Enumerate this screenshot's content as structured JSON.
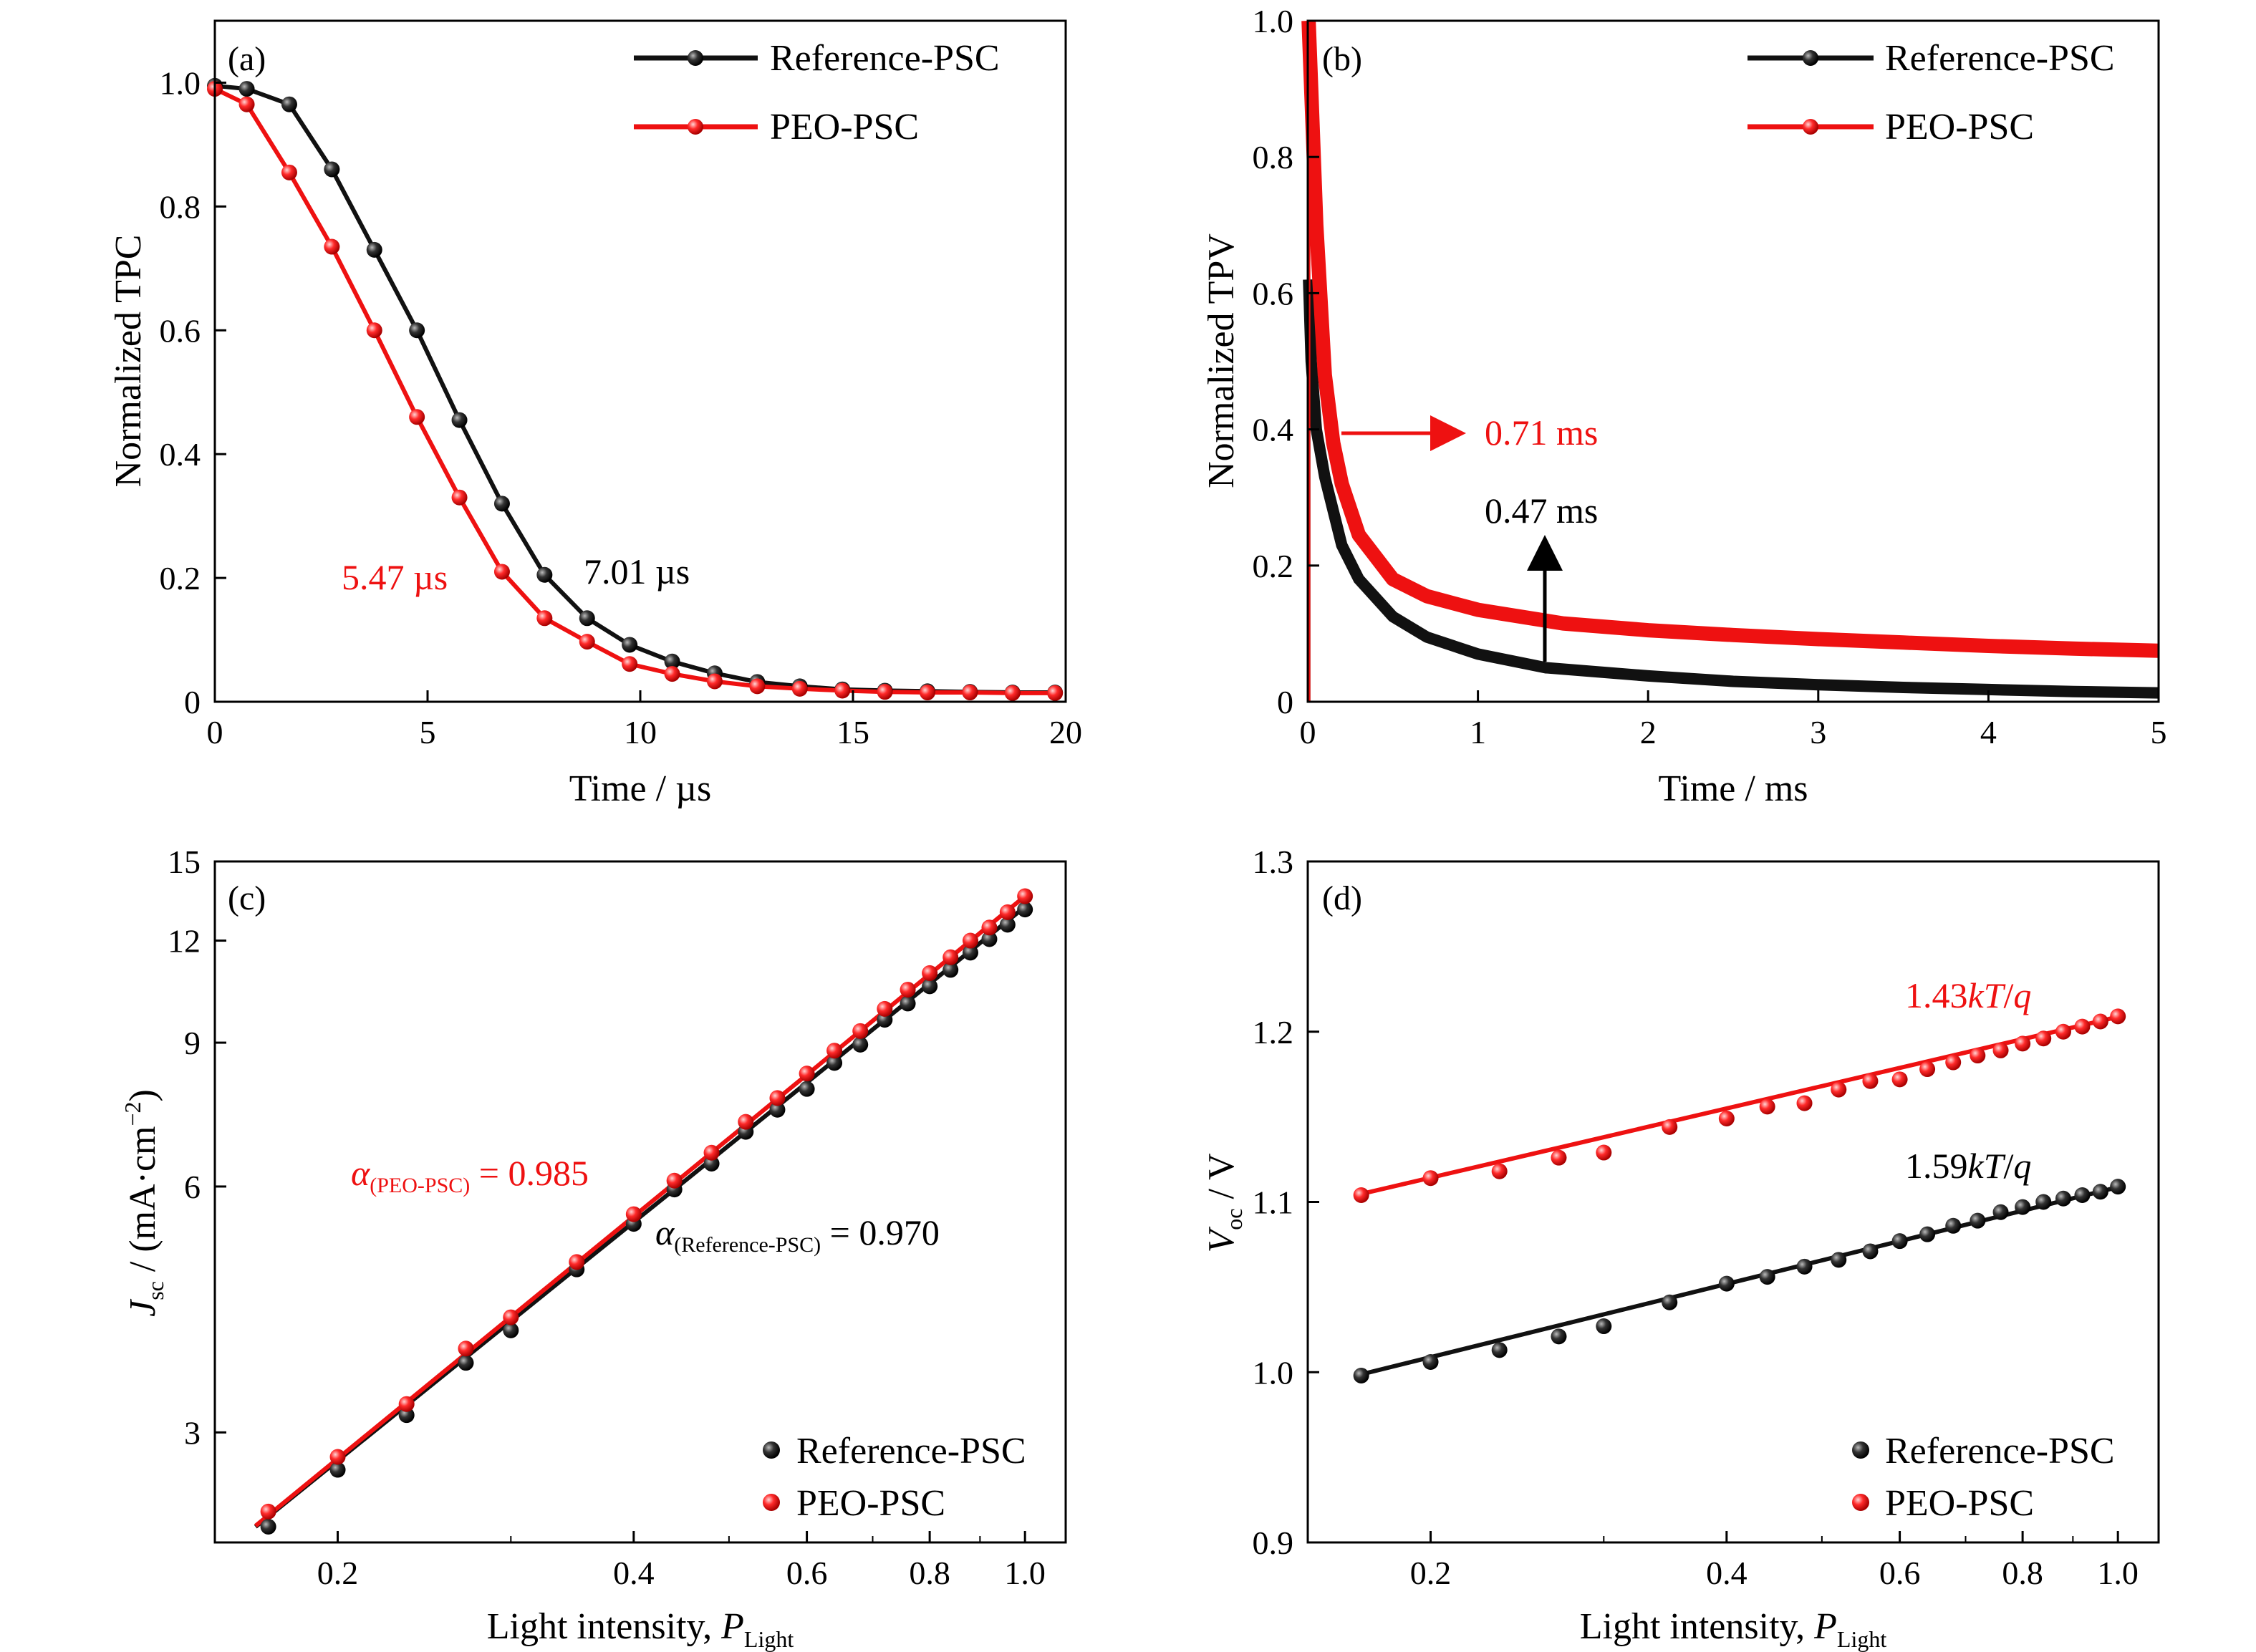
{
  "colors": {
    "reference": "#111111",
    "peo": "#ee1111",
    "axis": "#000000"
  },
  "chart_data": [
    {
      "panel": "(a)",
      "type": "line",
      "xlabel": "Time / µs",
      "ylabel": "Normalized TPC",
      "xlim": [
        0,
        20
      ],
      "ylim": [
        0,
        1.1
      ],
      "xticks": [
        "0",
        "5",
        "10",
        "15",
        "20"
      ],
      "yticks": [
        "0",
        "0.2",
        "0.4",
        "0.6",
        "0.8",
        "1.0"
      ],
      "legend": [
        "Reference-PSC",
        "PEO-PSC"
      ],
      "legend_position": "top-right",
      "series": [
        {
          "name": "Reference-PSC",
          "color_key": "reference",
          "x": [
            0,
            0.75,
            1.75,
            2.75,
            3.75,
            4.75,
            5.75,
            6.75,
            7.75,
            8.75,
            9.75,
            10.75,
            11.75,
            12.75,
            13.75,
            14.75,
            15.75,
            16.75,
            17.75,
            18.75,
            19.75
          ],
          "y": [
            0.995,
            0.99,
            0.965,
            0.86,
            0.73,
            0.6,
            0.455,
            0.32,
            0.205,
            0.135,
            0.092,
            0.065,
            0.046,
            0.032,
            0.025,
            0.02,
            0.018,
            0.017,
            0.016,
            0.015,
            0.015
          ]
        },
        {
          "name": "PEO-PSC",
          "color_key": "peo",
          "x": [
            0,
            0.75,
            1.75,
            2.75,
            3.75,
            4.75,
            5.75,
            6.75,
            7.75,
            8.75,
            9.75,
            10.75,
            11.75,
            12.75,
            13.75,
            14.75,
            15.75,
            16.75,
            17.75,
            18.75,
            19.75
          ],
          "y": [
            0.99,
            0.965,
            0.855,
            0.735,
            0.6,
            0.46,
            0.33,
            0.21,
            0.135,
            0.097,
            0.061,
            0.045,
            0.033,
            0.025,
            0.021,
            0.018,
            0.016,
            0.015,
            0.015,
            0.014,
            0.014
          ]
        }
      ],
      "annotations": [
        {
          "text": "5.47 µs",
          "color_key": "peo"
        },
        {
          "text": "7.01 µs",
          "color_key": "reference"
        }
      ]
    },
    {
      "panel": "(b)",
      "type": "line",
      "xlabel": "Time / ms",
      "ylabel": "Normalized TPV",
      "xlim": [
        0,
        5
      ],
      "ylim": [
        0,
        1.0
      ],
      "xticks": [
        "0",
        "1",
        "2",
        "3",
        "4",
        "5"
      ],
      "yticks": [
        "0",
        "0.2",
        "0.4",
        "0.6",
        "0.8",
        "1.0"
      ],
      "legend": [
        "Reference-PSC",
        "PEO-PSC"
      ],
      "legend_position": "top-right",
      "series": [
        {
          "name": "Reference-PSC",
          "color_key": "reference",
          "x": [
            0.005,
            0.02,
            0.05,
            0.1,
            0.2,
            0.3,
            0.5,
            0.7,
            1.0,
            1.4,
            2.0,
            2.5,
            3.0,
            3.5,
            4.0,
            4.5,
            5.0
          ],
          "y": [
            0.62,
            0.5,
            0.4,
            0.33,
            0.23,
            0.18,
            0.125,
            0.095,
            0.07,
            0.05,
            0.038,
            0.03,
            0.025,
            0.021,
            0.018,
            0.015,
            0.013
          ]
        },
        {
          "name": "PEO-PSC",
          "color_key": "peo",
          "x": [
            0.005,
            0.02,
            0.05,
            0.1,
            0.15,
            0.2,
            0.3,
            0.5,
            0.7,
            1.0,
            1.5,
            2.0,
            2.5,
            3.0,
            3.5,
            4.0,
            4.5,
            5.0
          ],
          "y": [
            1.0,
            0.9,
            0.7,
            0.48,
            0.38,
            0.32,
            0.245,
            0.18,
            0.155,
            0.135,
            0.115,
            0.105,
            0.098,
            0.092,
            0.087,
            0.082,
            0.078,
            0.075
          ]
        }
      ],
      "annotations": [
        {
          "text": "0.71 ms",
          "color_key": "peo"
        },
        {
          "text": "0.47 ms",
          "color_key": "reference"
        }
      ]
    },
    {
      "panel": "(c)",
      "type": "scatter",
      "xscale": "log",
      "yscale": "log",
      "xlabel": "Light intensity, P_Light",
      "ylabel": "J_sc / (mA·cm⁻²)",
      "xlim": [
        0.15,
        1.1
      ],
      "ylim": [
        2.2,
        15
      ],
      "xticks": [
        "0.2",
        "0.4",
        "0.6",
        "0.8",
        "1.0"
      ],
      "yticks": [
        "3",
        "6",
        "9",
        "12",
        "15"
      ],
      "legend": [
        "Reference-PSC",
        "PEO-PSC"
      ],
      "legend_position": "bottom-right",
      "series": [
        {
          "name": "Reference-PSC",
          "color_key": "reference",
          "slope": 0.97,
          "intercept_at_1": 13.2,
          "x": [
            0.17,
            0.2,
            0.235,
            0.27,
            0.3,
            0.35,
            0.4,
            0.44,
            0.48,
            0.52,
            0.56,
            0.6,
            0.64,
            0.68,
            0.72,
            0.76,
            0.8,
            0.84,
            0.88,
            0.92,
            0.96,
            1.0
          ],
          "y": [
            2.3,
            2.7,
            3.15,
            3.65,
            4.0,
            4.75,
            5.4,
            5.95,
            6.4,
            7.0,
            7.45,
            7.9,
            8.5,
            8.95,
            9.6,
            10.05,
            10.55,
            11.05,
            11.6,
            12.05,
            12.55,
            13.1
          ]
        },
        {
          "name": "PEO-PSC",
          "color_key": "peo",
          "slope": 0.985,
          "intercept_at_1": 13.6,
          "x": [
            0.17,
            0.2,
            0.235,
            0.27,
            0.3,
            0.35,
            0.4,
            0.44,
            0.48,
            0.52,
            0.56,
            0.6,
            0.64,
            0.68,
            0.72,
            0.76,
            0.8,
            0.84,
            0.88,
            0.92,
            0.96,
            1.0
          ],
          "y": [
            2.4,
            2.8,
            3.25,
            3.8,
            4.15,
            4.85,
            5.55,
            6.1,
            6.6,
            7.2,
            7.7,
            8.25,
            8.8,
            9.3,
            9.9,
            10.45,
            10.95,
            11.45,
            12.0,
            12.45,
            13.0,
            13.6
          ]
        }
      ],
      "annotations": [
        {
          "sym": "α",
          "sub": "(PEO-PSC)",
          "rest": " = 0.985",
          "color_key": "peo"
        },
        {
          "sym": "α",
          "sub": "(Reference-PSC)",
          "rest": " = 0.970",
          "color_key": "reference"
        }
      ]
    },
    {
      "panel": "(d)",
      "type": "scatter",
      "xscale": "log",
      "xlabel": "Light intensity, P_Light",
      "ylabel": "V_oc / V",
      "xlim": [
        0.15,
        1.1
      ],
      "ylim": [
        0.9,
        1.3
      ],
      "xticks": [
        "0.2",
        "0.4",
        "0.6",
        "0.8",
        "1.0"
      ],
      "yticks": [
        "0.9",
        "1.0",
        "1.1",
        "1.2",
        "1.3"
      ],
      "legend": [
        "Reference-PSC",
        "PEO-PSC"
      ],
      "legend_position": "bottom-right",
      "series": [
        {
          "name": "Reference-PSC",
          "color_key": "reference",
          "slope_label": "1.59kT/q",
          "x": [
            0.17,
            0.2,
            0.235,
            0.27,
            0.3,
            0.35,
            0.4,
            0.44,
            0.48,
            0.52,
            0.56,
            0.6,
            0.64,
            0.68,
            0.72,
            0.76,
            0.8,
            0.84,
            0.88,
            0.92,
            0.96,
            1.0
          ],
          "y": [
            0.998,
            1.006,
            1.013,
            1.021,
            1.027,
            1.041,
            1.052,
            1.056,
            1.062,
            1.066,
            1.071,
            1.077,
            1.081,
            1.086,
            1.089,
            1.094,
            1.097,
            1.1,
            1.102,
            1.104,
            1.106,
            1.109
          ]
        },
        {
          "name": "PEO-PSC",
          "color_key": "peo",
          "slope_label": "1.43kT/q",
          "x": [
            0.17,
            0.2,
            0.235,
            0.27,
            0.3,
            0.35,
            0.4,
            0.44,
            0.48,
            0.52,
            0.56,
            0.6,
            0.64,
            0.68,
            0.72,
            0.76,
            0.8,
            0.84,
            0.88,
            0.92,
            0.96,
            1.0
          ],
          "y": [
            1.104,
            1.114,
            1.118,
            1.126,
            1.129,
            1.144,
            1.149,
            1.156,
            1.158,
            1.166,
            1.171,
            1.172,
            1.178,
            1.182,
            1.186,
            1.189,
            1.193,
            1.196,
            1.2,
            1.203,
            1.206,
            1.209
          ]
        }
      ],
      "annotations": [
        {
          "num": "1.43",
          "kt": "kT",
          "slash": "/",
          "q": "q",
          "color_key": "peo"
        },
        {
          "num": "1.59",
          "kt": "kT",
          "slash": "/",
          "q": "q",
          "color_key": "reference"
        }
      ]
    }
  ]
}
